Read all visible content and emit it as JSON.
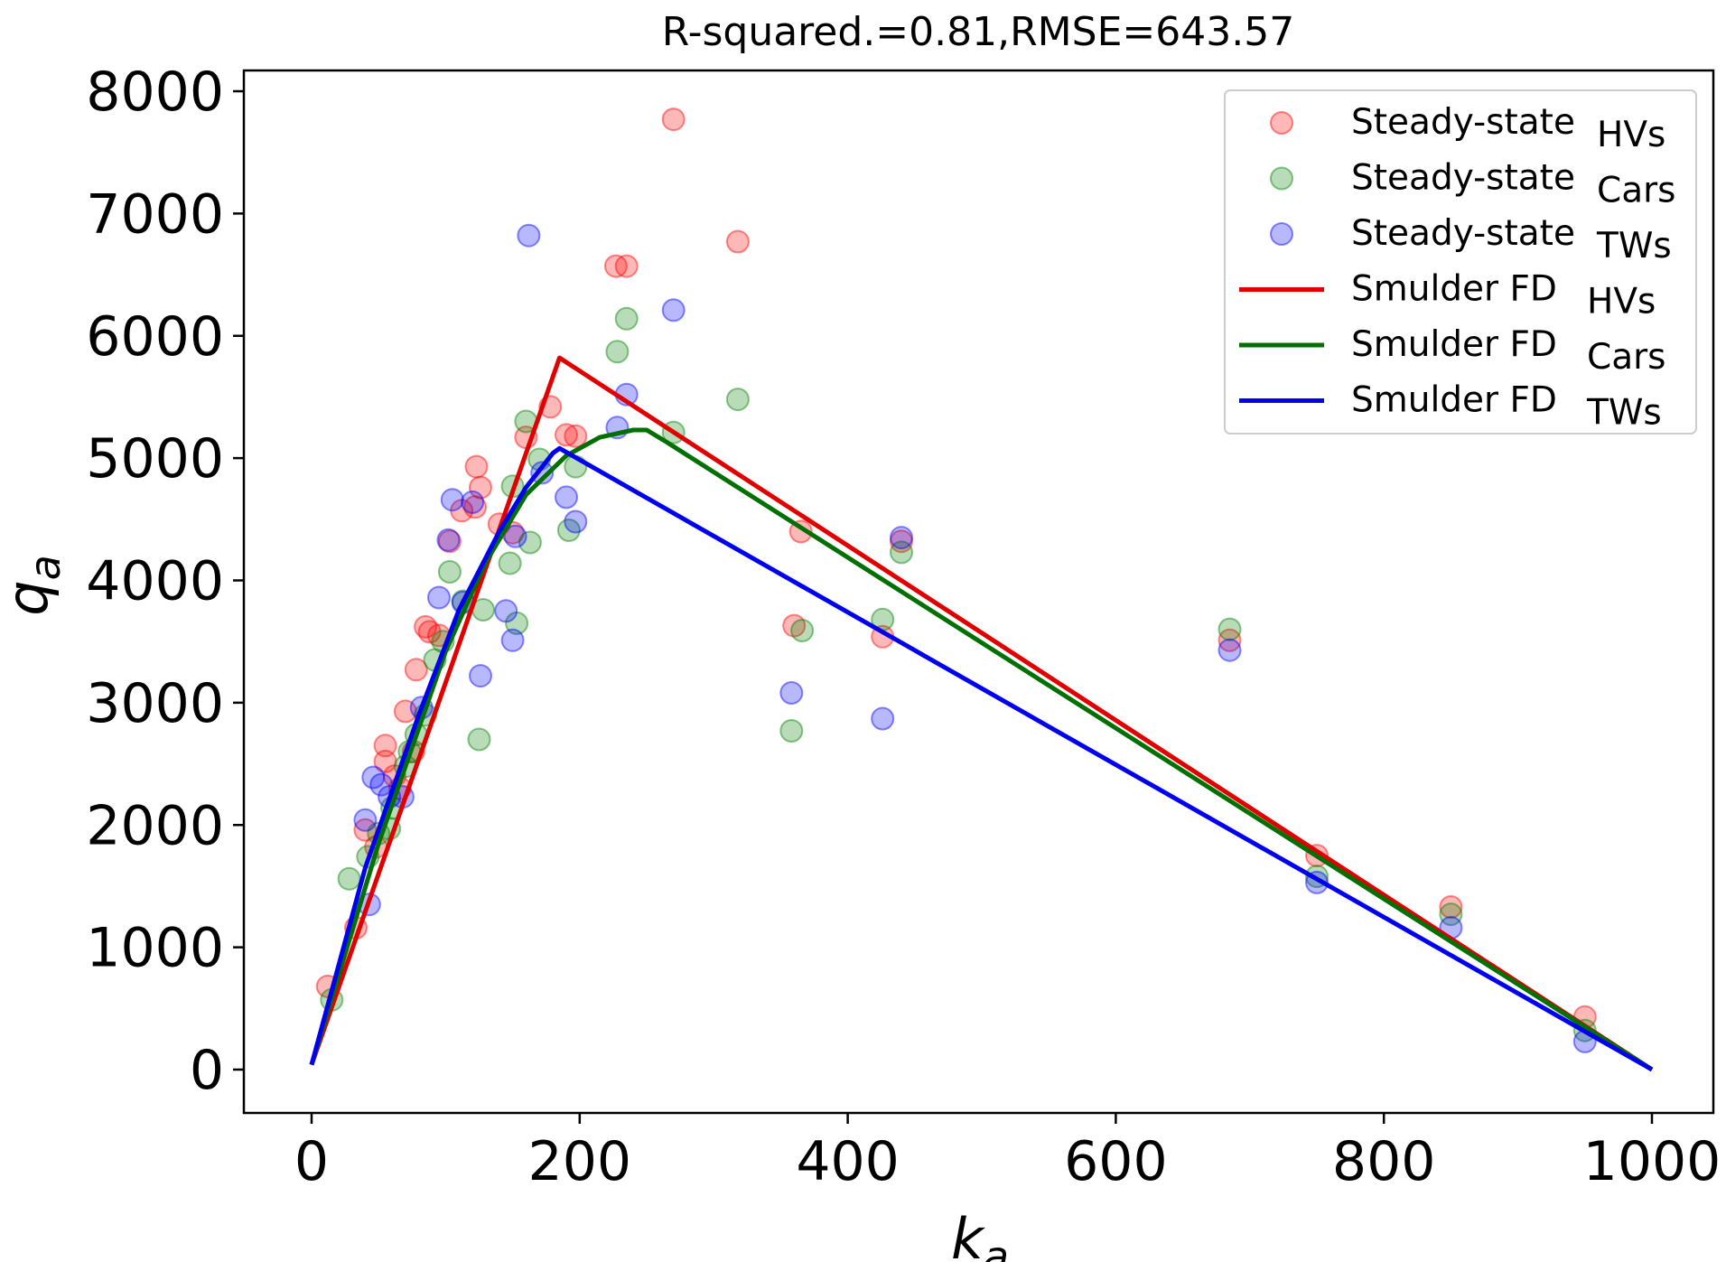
{
  "chart_data": {
    "type": "scatter",
    "title": "R-squared.=0.81,RMSE=643.57",
    "xlabel": "k",
    "xlabel_sub": "a",
    "ylabel": "q",
    "ylabel_sub": "a",
    "xlim": [
      -50,
      1050
    ],
    "ylim": [
      -380,
      8130
    ],
    "xticks": [
      0,
      200,
      400,
      600,
      800,
      1000
    ],
    "yticks": [
      0,
      1000,
      2000,
      3000,
      4000,
      5000,
      6000,
      7000,
      8000
    ],
    "legend_position": "top-right",
    "series": [
      {
        "name": "Steady-state",
        "name_sub": "HVs",
        "kind": "scatter",
        "color": "#ff0000",
        "points": [
          [
            12,
            680
          ],
          [
            33,
            1160
          ],
          [
            40,
            1960
          ],
          [
            48,
            1820
          ],
          [
            55,
            2520
          ],
          [
            55,
            2650
          ],
          [
            62,
            2400
          ],
          [
            66,
            2300
          ],
          [
            70,
            2930
          ],
          [
            76,
            2600
          ],
          [
            78,
            3270
          ],
          [
            85,
            3620
          ],
          [
            88,
            3580
          ],
          [
            95,
            3550
          ],
          [
            103,
            4320
          ],
          [
            112,
            4570
          ],
          [
            122,
            4600
          ],
          [
            123,
            4930
          ],
          [
            126,
            4760
          ],
          [
            140,
            4460
          ],
          [
            150,
            4390
          ],
          [
            160,
            5170
          ],
          [
            178,
            5420
          ],
          [
            190,
            5190
          ],
          [
            197,
            5180
          ],
          [
            227,
            6570
          ],
          [
            235,
            6570
          ],
          [
            270,
            7770
          ],
          [
            318,
            6770
          ],
          [
            360,
            3630
          ],
          [
            365,
            4400
          ],
          [
            426,
            3540
          ],
          [
            440,
            4320
          ],
          [
            685,
            3510
          ],
          [
            750,
            1750
          ],
          [
            850,
            1330
          ],
          [
            950,
            430
          ]
        ]
      },
      {
        "name": "Steady-state",
        "name_sub": "Cars",
        "kind": "scatter",
        "color": "#008000",
        "points": [
          [
            15,
            570
          ],
          [
            28,
            1560
          ],
          [
            42,
            1740
          ],
          [
            50,
            1930
          ],
          [
            58,
            1970
          ],
          [
            60,
            2140
          ],
          [
            70,
            2480
          ],
          [
            73,
            2600
          ],
          [
            78,
            2740
          ],
          [
            85,
            2900
          ],
          [
            92,
            3350
          ],
          [
            98,
            3500
          ],
          [
            103,
            4070
          ],
          [
            113,
            3830
          ],
          [
            125,
            2700
          ],
          [
            128,
            3760
          ],
          [
            148,
            4140
          ],
          [
            150,
            4770
          ],
          [
            153,
            3650
          ],
          [
            160,
            5300
          ],
          [
            163,
            4310
          ],
          [
            170,
            4990
          ],
          [
            192,
            4410
          ],
          [
            197,
            4930
          ],
          [
            228,
            5870
          ],
          [
            235,
            6140
          ],
          [
            270,
            5210
          ],
          [
            318,
            5480
          ],
          [
            358,
            2770
          ],
          [
            366,
            3590
          ],
          [
            426,
            3680
          ],
          [
            440,
            4230
          ],
          [
            685,
            3600
          ],
          [
            750,
            1580
          ],
          [
            850,
            1270
          ],
          [
            950,
            320
          ]
        ]
      },
      {
        "name": "Steady-state",
        "name_sub": "TWs",
        "kind": "scatter",
        "color": "#0000ff",
        "points": [
          [
            40,
            2040
          ],
          [
            43,
            1350
          ],
          [
            46,
            2390
          ],
          [
            52,
            2330
          ],
          [
            58,
            2230
          ],
          [
            68,
            2230
          ],
          [
            82,
            2960
          ],
          [
            95,
            3860
          ],
          [
            102,
            4330
          ],
          [
            105,
            4660
          ],
          [
            113,
            3820
          ],
          [
            120,
            4640
          ],
          [
            126,
            3220
          ],
          [
            145,
            3750
          ],
          [
            150,
            3510
          ],
          [
            152,
            4360
          ],
          [
            162,
            6820
          ],
          [
            172,
            4880
          ],
          [
            190,
            4680
          ],
          [
            197,
            4480
          ],
          [
            228,
            5250
          ],
          [
            235,
            5520
          ],
          [
            270,
            6210
          ],
          [
            358,
            3080
          ],
          [
            426,
            2870
          ],
          [
            440,
            4350
          ],
          [
            685,
            3430
          ],
          [
            750,
            1530
          ],
          [
            850,
            1160
          ],
          [
            950,
            230
          ]
        ]
      },
      {
        "name": "Smulder FD",
        "name_sub": "HVs",
        "kind": "line",
        "color": "#e00000",
        "points": [
          [
            0,
            40
          ],
          [
            185,
            5820
          ],
          [
            1000,
            0
          ]
        ]
      },
      {
        "name": "Smulder FD",
        "name_sub": "Cars",
        "kind": "line",
        "color": "#007000",
        "points": [
          [
            0,
            40
          ],
          [
            50,
            1850
          ],
          [
            100,
            3420
          ],
          [
            130,
            4150
          ],
          [
            160,
            4700
          ],
          [
            190,
            5020
          ],
          [
            215,
            5170
          ],
          [
            240,
            5230
          ],
          [
            250,
            5230
          ],
          [
            265,
            5130
          ],
          [
            1000,
            0
          ]
        ]
      },
      {
        "name": "Smulder FD",
        "name_sub": "TWs",
        "kind": "line",
        "color": "#0000ee",
        "points": [
          [
            0,
            40
          ],
          [
            40,
            1650
          ],
          [
            80,
            2900
          ],
          [
            110,
            3760
          ],
          [
            140,
            4400
          ],
          [
            160,
            4760
          ],
          [
            180,
            5040
          ],
          [
            185,
            5080
          ],
          [
            1000,
            0
          ]
        ]
      }
    ]
  }
}
